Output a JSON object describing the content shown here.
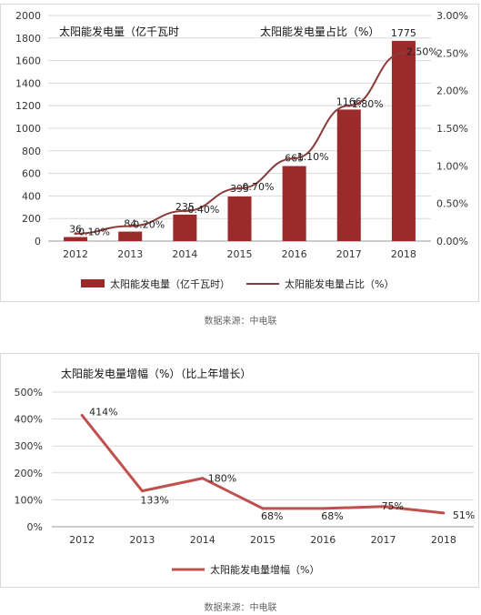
{
  "chart_data": [
    {
      "type": "bar+line",
      "title_left": "太阳能发电量（亿千瓦时",
      "title_right": "太阳能发电量占比（%）",
      "categories": [
        "2012",
        "2013",
        "2014",
        "2015",
        "2016",
        "2017",
        "2018"
      ],
      "series": [
        {
          "name": "太阳能发电量（亿千瓦时）",
          "kind": "bar",
          "axis": "left",
          "values": [
            36,
            84,
            235,
            395,
            665,
            1166,
            1775
          ],
          "labels": [
            "36",
            "84",
            "235",
            "395",
            "665",
            "1166",
            "1775"
          ]
        },
        {
          "name": "太阳能发电量占比（%）",
          "kind": "line",
          "axis": "right",
          "values": [
            0.1,
            0.2,
            0.4,
            0.7,
            1.1,
            1.8,
            2.5
          ],
          "labels": [
            "0.10%",
            "0.20%",
            "0.40%",
            "0.70%",
            "1.10%",
            "1.80%",
            "2.50%"
          ]
        }
      ],
      "y_left": {
        "ticks": [
          "0",
          "200",
          "400",
          "600",
          "800",
          "1000",
          "1200",
          "1400",
          "1600",
          "1800",
          "2000"
        ],
        "ylim": [
          0,
          2000
        ]
      },
      "y_right": {
        "ticks": [
          "0.00%",
          "0.50%",
          "1.00%",
          "1.50%",
          "2.00%",
          "2.50%",
          "3.00%"
        ],
        "ylim": [
          0,
          3
        ]
      },
      "grid": true,
      "legend_position": "bottom",
      "colors": {
        "bar": "#9b2b2b",
        "line": "#8b3a3a"
      }
    },
    {
      "type": "line",
      "title": "太阳能发电量增幅（%）（比上年增长）",
      "categories": [
        "2012",
        "2013",
        "2014",
        "2015",
        "2016",
        "2017",
        "2018"
      ],
      "series": [
        {
          "name": "太阳能发电量增幅（%）",
          "values": [
            414,
            133,
            180,
            68,
            68,
            75,
            51
          ],
          "labels": [
            "414%",
            "133%",
            "180%",
            "68%",
            "68%",
            "75%",
            "51%"
          ]
        }
      ],
      "y_ticks": [
        "0%",
        "100%",
        "200%",
        "300%",
        "400%",
        "500%"
      ],
      "ylim": [
        0,
        500
      ],
      "grid": true,
      "legend_position": "bottom",
      "colors": {
        "line": "#c0504d"
      }
    }
  ],
  "sources": {
    "first": "数据来源：中电联",
    "second": "数据来源：中电联"
  }
}
